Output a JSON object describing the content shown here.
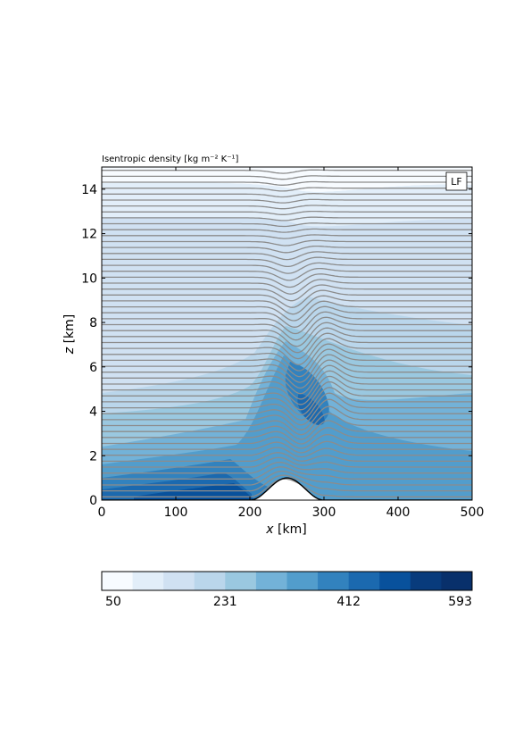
{
  "chart_data": {
    "type": "heatmap",
    "title": "Isentropic density [kg m⁻² K⁻¹]",
    "xlabel_var": "x",
    "xlabel_unit": " [km]",
    "ylabel_var": "z",
    "ylabel_unit": " [km]",
    "xlim": [
      0,
      500
    ],
    "ylim": [
      0,
      15
    ],
    "xticks": [
      0,
      100,
      200,
      300,
      400,
      500
    ],
    "yticks": [
      0,
      2,
      4,
      6,
      8,
      10,
      12,
      14
    ],
    "panel_tag": "LF",
    "colorbar": {
      "range": [
        50,
        593
      ],
      "levels": 13,
      "tick_values": [
        50,
        231,
        412,
        593
      ],
      "tick_labels": [
        "50",
        "231",
        "412",
        "593"
      ],
      "colors": [
        "#f7fbff",
        "#e2eef9",
        "#d0e1f2",
        "#bad6eb",
        "#9ac8e0",
        "#73b2d8",
        "#529dcc",
        "#3282be",
        "#1b69af",
        "#08519c",
        "#083b7c",
        "#08306b"
      ]
    },
    "topography": {
      "type": "mountain",
      "center_x": 250,
      "half_width_x": 50,
      "height_km": 1.0
    },
    "isentropes": {
      "count": 56,
      "z_bottom_km": 0.15,
      "z_top_km": 14.85,
      "color": "#8c8c8c"
    }
  }
}
